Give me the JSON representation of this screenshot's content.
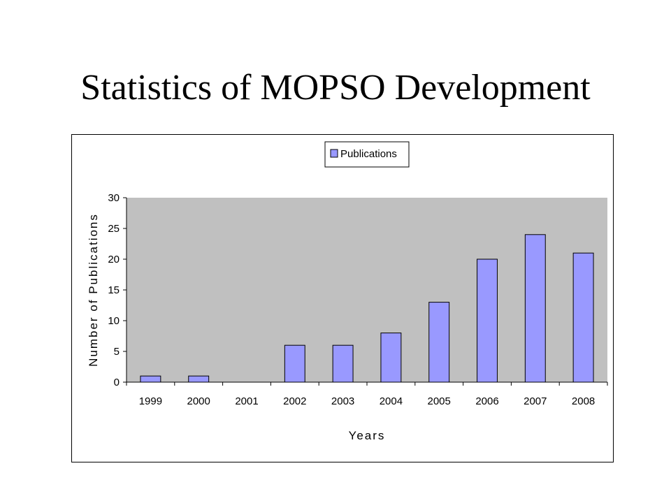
{
  "slide": {
    "title": "Statistics of MOPSO Development"
  },
  "colors": {
    "plot_area": "#c0c0c0",
    "bar_fill": "#9999ff",
    "bar_stroke": "#000000",
    "axis": "#000000"
  },
  "chart_data": {
    "type": "bar",
    "title": "",
    "categories": [
      "1999",
      "2000",
      "2001",
      "2002",
      "2003",
      "2004",
      "2005",
      "2006",
      "2007",
      "2008"
    ],
    "series": [
      {
        "name": "Publications",
        "values": [
          1,
          1,
          0,
          6,
          6,
          8,
          13,
          20,
          24,
          21
        ]
      }
    ],
    "xlabel": "Years",
    "ylabel": "Number of Publications",
    "ylim": [
      0,
      30
    ],
    "yticks": [
      0,
      5,
      10,
      15,
      20,
      25,
      30
    ],
    "grid": false,
    "legend_position": "top"
  }
}
